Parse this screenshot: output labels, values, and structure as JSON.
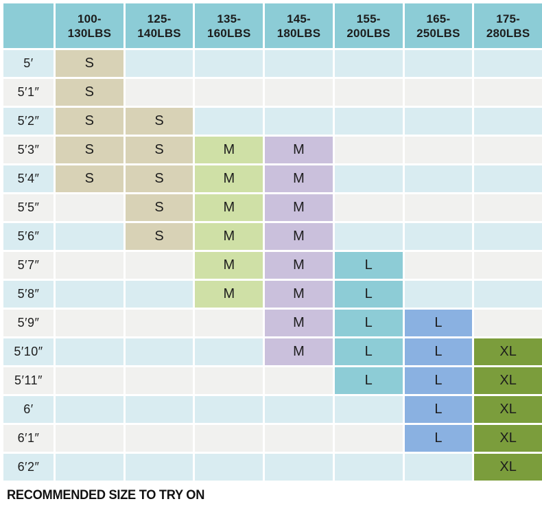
{
  "colors": {
    "background": "#ffffff",
    "header_bg": "#8cccd6",
    "row_stripe_blue": "#d9ecf1",
    "row_stripe_gray": "#f1f1ef",
    "text": "#1c1c1c",
    "column_fills": [
      "#d8d2b6",
      "#d8d2b6",
      "#cfe0a6",
      "#cac0dc",
      "#8dccd6",
      "#8ab1e1",
      "#7b9d3c"
    ]
  },
  "footer": {
    "note": "RECOMMENDED SIZE TO TRY ON"
  },
  "chart_data": {
    "type": "table",
    "title": "",
    "corner_label": "",
    "column_headers": [
      {
        "line1": "100-",
        "line2": "130LBS"
      },
      {
        "line1": "125-",
        "line2": "140LBS"
      },
      {
        "line1": "135-",
        "line2": "160LBS"
      },
      {
        "line1": "145-",
        "line2": "180LBS"
      },
      {
        "line1": "155-",
        "line2": "200LBS"
      },
      {
        "line1": "165-",
        "line2": "250LBS"
      },
      {
        "line1": "175-",
        "line2": "280LBS"
      }
    ],
    "row_headers": [
      "5′",
      "5′1″",
      "5′2″",
      "5′3″",
      "5′4″",
      "5′5″",
      "5′6″",
      "5′7″",
      "5′8″",
      "5′9″",
      "5′10″",
      "5′11″",
      "6′",
      "6′1″",
      "6′2″"
    ],
    "cells": [
      [
        "S",
        "",
        "",
        "",
        "",
        "",
        ""
      ],
      [
        "S",
        "",
        "",
        "",
        "",
        "",
        ""
      ],
      [
        "S",
        "S",
        "",
        "",
        "",
        "",
        ""
      ],
      [
        "S",
        "S",
        "M",
        "M",
        "",
        "",
        ""
      ],
      [
        "S",
        "S",
        "M",
        "M",
        "",
        "",
        ""
      ],
      [
        "",
        "S",
        "M",
        "M",
        "",
        "",
        ""
      ],
      [
        "",
        "S",
        "M",
        "M",
        "",
        "",
        ""
      ],
      [
        "",
        "",
        "M",
        "M",
        "L",
        "",
        ""
      ],
      [
        "",
        "",
        "M",
        "M",
        "L",
        "",
        ""
      ],
      [
        "",
        "",
        "",
        "M",
        "L",
        "L",
        ""
      ],
      [
        "",
        "",
        "",
        "M",
        "L",
        "L",
        "XL"
      ],
      [
        "",
        "",
        "",
        "",
        "L",
        "L",
        "XL"
      ],
      [
        "",
        "",
        "",
        "",
        "",
        "L",
        "XL"
      ],
      [
        "",
        "",
        "",
        "",
        "",
        "L",
        "XL"
      ],
      [
        "",
        "",
        "",
        "",
        "",
        "",
        "XL"
      ]
    ],
    "legend_note": "RECOMMENDED SIZE TO TRY ON"
  }
}
